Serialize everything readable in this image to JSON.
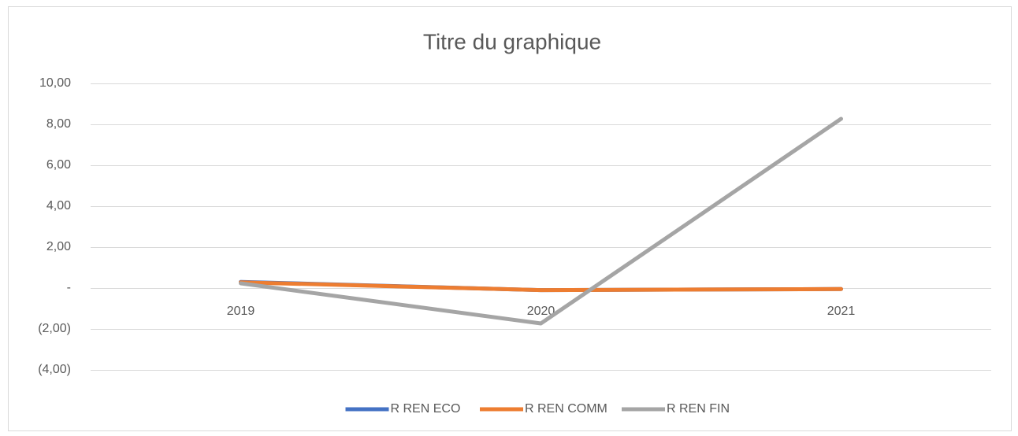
{
  "chart_data": {
    "type": "line",
    "title": "Titre du graphique",
    "categories": [
      "2019",
      "2020",
      "2021"
    ],
    "series": [
      {
        "name": "R REN ECO",
        "color": "#4472c4",
        "values": [
          0.3,
          -0.1,
          -0.05
        ]
      },
      {
        "name": "R REN COMM",
        "color": "#ed7d31",
        "values": [
          0.28,
          -0.1,
          -0.05
        ]
      },
      {
        "name": "R REN FIN",
        "color": "#a5a5a5",
        "values": [
          0.23,
          -1.73,
          8.27
        ]
      }
    ],
    "ylim": [
      -4,
      10
    ],
    "yticks": [
      {
        "value": -4,
        "label": "(4,00)"
      },
      {
        "value": -2,
        "label": "(2,00)"
      },
      {
        "value": 0,
        "label": "-"
      },
      {
        "value": 2,
        "label": "2,00"
      },
      {
        "value": 4,
        "label": "4,00"
      },
      {
        "value": 6,
        "label": "6,00"
      },
      {
        "value": 8,
        "label": "8,00"
      },
      {
        "value": 10,
        "label": "10,00"
      }
    ],
    "grid": true,
    "legend": "bottom"
  }
}
